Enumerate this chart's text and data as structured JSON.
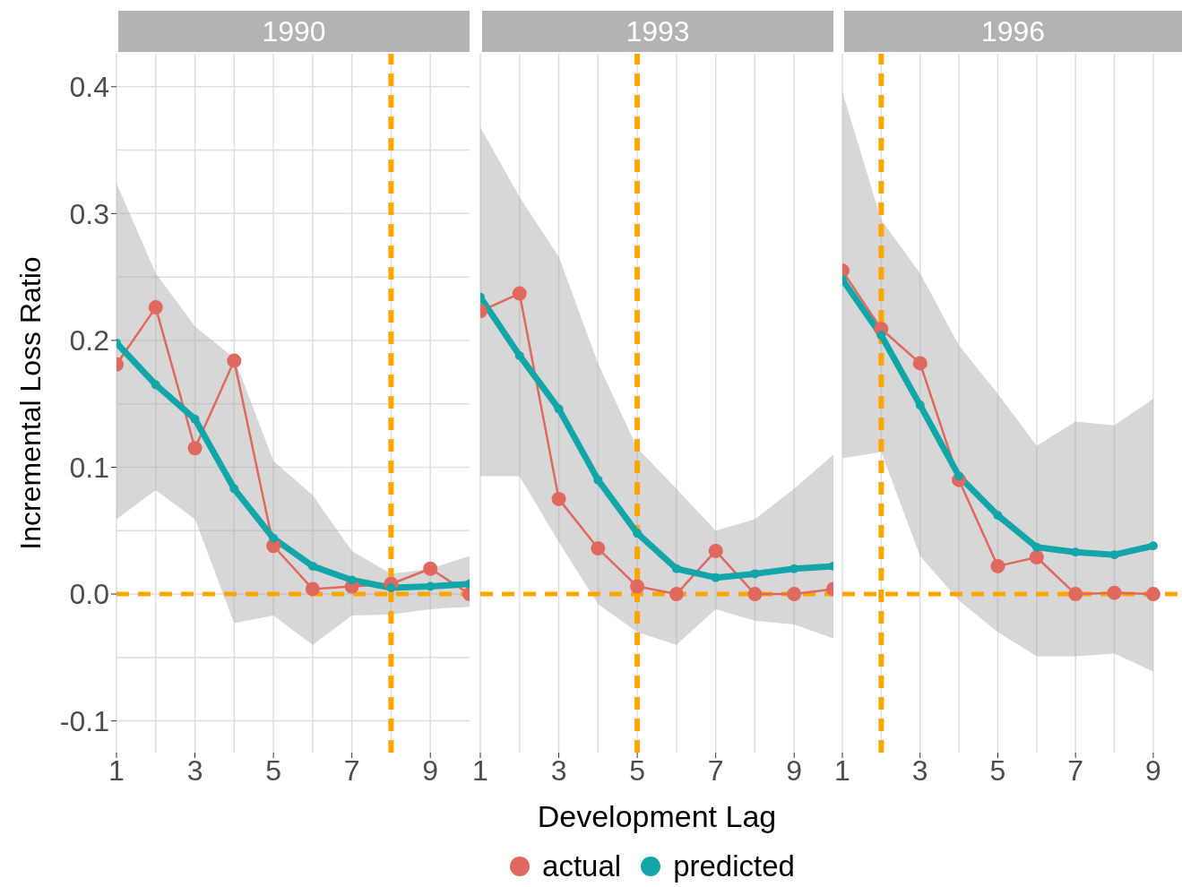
{
  "chart_data": [
    {
      "type": "line",
      "title": "1990",
      "ylabel": "Incremental Loss Ratio",
      "x": [
        1,
        2,
        3,
        4,
        5,
        6,
        7,
        8,
        9,
        10
      ],
      "xlim": [
        1,
        10
      ],
      "xticks": [
        1,
        3,
        5,
        7,
        9
      ],
      "ylim": [
        -0.125,
        0.426
      ],
      "yticks": [
        -0.1,
        {
          "value": 0,
          "label": "0.0"
        },
        0.1,
        0.2,
        0.3,
        0.4
      ],
      "grid": true,
      "marker": "circle",
      "series": [
        {
          "color": "#e0695f",
          "values": [
            0.181,
            0.226,
            0.115,
            0.184,
            0.038,
            0.004,
            0.006,
            0.008,
            0.02,
            0.0
          ]
        },
        {
          "color": "#13a6a8",
          "values": [
            0.198,
            0.165,
            0.138,
            0.083,
            0.044,
            0.022,
            0.011,
            0.005,
            0.006,
            0.008
          ],
          "lower": [
            0.059,
            0.082,
            0.059,
            -0.023,
            -0.017,
            -0.04,
            -0.017,
            -0.016,
            -0.012,
            -0.01
          ],
          "upper": [
            0.324,
            0.253,
            0.211,
            0.186,
            0.105,
            0.078,
            0.034,
            0.016,
            0.02,
            0.03
          ]
        }
      ],
      "ref_lines": [
        {
          "axis": "x",
          "value": 8,
          "color": "#ffa500",
          "line_style": "dashed"
        },
        {
          "axis": "y",
          "value": 0,
          "color": "#ffa500",
          "line_style": "dashed"
        }
      ]
    },
    {
      "type": "line",
      "title": "1993",
      "xlabel": "Development Lag",
      "legend": "bottom",
      "tick_labels": "x",
      "x": [
        1,
        2,
        3,
        4,
        5,
        6,
        7,
        8,
        9,
        10
      ],
      "xlim": [
        1,
        10
      ],
      "xticks": [
        1,
        3,
        5,
        7,
        9
      ],
      "ylim": [
        -0.125,
        0.426
      ],
      "grid": true,
      "marker": "circle",
      "series": [
        {
          "name": "actual",
          "color": "#e0695f",
          "values": [
            0.223,
            0.237,
            0.075,
            0.036,
            0.006,
            0.0,
            0.034,
            0.0,
            0.0,
            0.004
          ]
        },
        {
          "name": "predicted",
          "color": "#13a6a8",
          "values": [
            0.234,
            0.188,
            0.146,
            0.09,
            0.048,
            0.02,
            0.013,
            0.016,
            0.02,
            0.022
          ],
          "lower": [
            0.093,
            0.093,
            0.041,
            -0.008,
            -0.03,
            -0.04,
            -0.012,
            -0.021,
            -0.024,
            -0.035
          ],
          "upper": [
            0.368,
            0.313,
            0.266,
            0.182,
            0.115,
            0.083,
            0.05,
            0.059,
            0.083,
            0.11
          ]
        }
      ],
      "ref_lines": [
        {
          "axis": "x",
          "value": 5,
          "color": "#ffa500",
          "line_style": "dashed"
        },
        {
          "axis": "y",
          "value": 0,
          "color": "#ffa500",
          "line_style": "dashed"
        }
      ]
    },
    {
      "type": "line",
      "title": "1996",
      "tick_labels": "x",
      "x": [
        1,
        2,
        3,
        4,
        5,
        6,
        7,
        8,
        9
      ],
      "xlim": [
        1,
        9.74
      ],
      "xticks": [
        1,
        3,
        5,
        7,
        9
      ],
      "ylim": [
        -0.125,
        0.426
      ],
      "grid": true,
      "marker": "circle",
      "series": [
        {
          "color": "#e0695f",
          "values": [
            0.255,
            0.209,
            0.182,
            0.09,
            0.022,
            0.029,
            0.0,
            0.001,
            0.0
          ]
        },
        {
          "color": "#13a6a8",
          "values": [
            0.248,
            0.204,
            0.149,
            0.093,
            0.062,
            0.037,
            0.033,
            0.031,
            0.038
          ],
          "lower": [
            0.107,
            0.112,
            0.03,
            -0.005,
            -0.03,
            -0.049,
            -0.049,
            -0.047,
            -0.061
          ],
          "upper": [
            0.396,
            0.295,
            0.253,
            0.196,
            0.158,
            0.117,
            0.136,
            0.133,
            0.154
          ]
        }
      ],
      "ref_lines": [
        {
          "axis": "x",
          "value": 2,
          "color": "#ffa500",
          "line_style": "dashed"
        },
        {
          "axis": "y",
          "value": 0,
          "color": "#ffa500",
          "line_style": "dashed"
        }
      ]
    }
  ]
}
